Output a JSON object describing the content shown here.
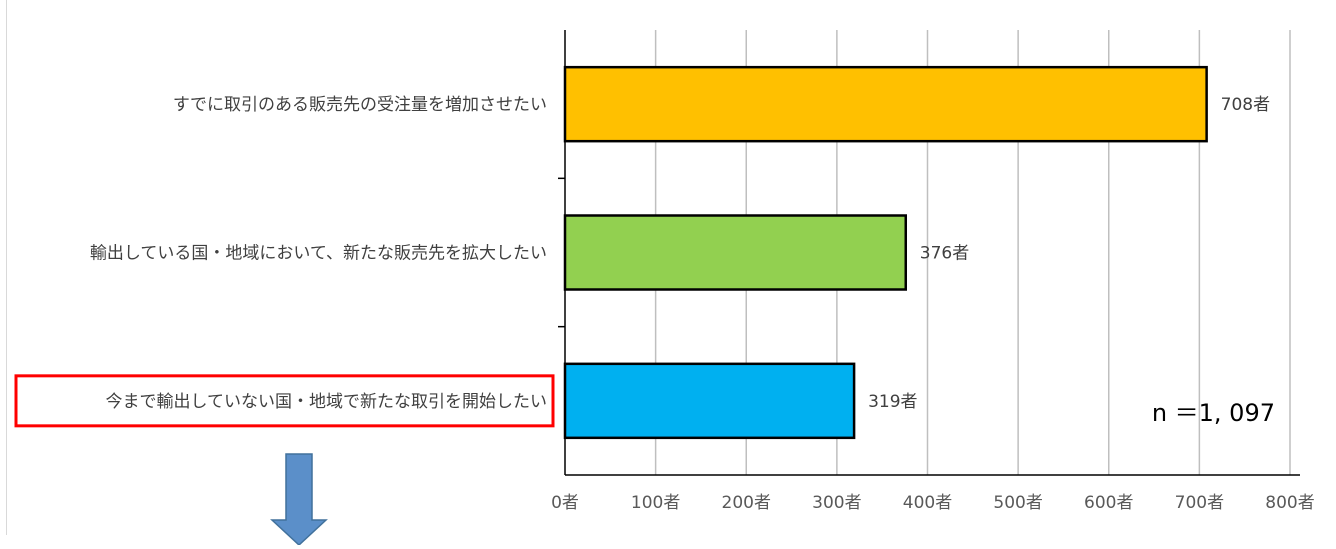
{
  "chart_data": {
    "type": "bar",
    "orientation": "horizontal",
    "categories": [
      "すでに取引のある販売先の受注量を増加させたい",
      "輸出している国・地域において、新たな販売先を拡大したい",
      "今まで輸出していない国・地域で新たな取引を開始したい"
    ],
    "values": [
      708,
      376,
      319
    ],
    "value_labels": [
      "708者",
      "376者",
      "319者"
    ],
    "bar_colors": [
      "#FFC000",
      "#92D050",
      "#00B0F0"
    ],
    "xlim": [
      0,
      800
    ],
    "xticks": [
      0,
      100,
      200,
      300,
      400,
      500,
      600,
      700,
      800
    ],
    "xtick_labels": [
      "0者",
      "100者",
      "200者",
      "300者",
      "400者",
      "500者",
      "600者",
      "700者",
      "800者"
    ],
    "grid": true,
    "highlighted_category_index": 2,
    "highlight_color": "#FF0000",
    "annotation": "n ＝1, 097",
    "arrow_color": "#5B8FC9",
    "title": "",
    "xlabel": "",
    "ylabel": ""
  }
}
